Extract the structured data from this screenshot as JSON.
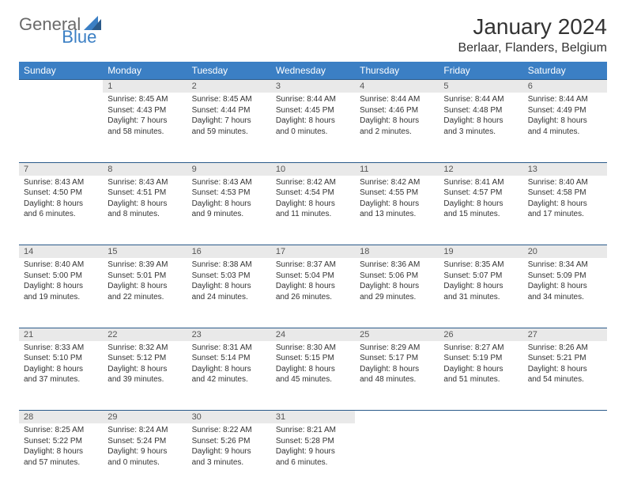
{
  "brand": {
    "part1": "General",
    "part2": "Blue"
  },
  "title": "January 2024",
  "location": "Berlaar, Flanders, Belgium",
  "colors": {
    "header_bg": "#3b7fc4",
    "header_text": "#ffffff",
    "daynum_bg": "#e9e9e9",
    "border": "#2a5a8a",
    "body_text": "#333333",
    "logo_gray": "#6a6a6a",
    "logo_blue": "#3b7fc4"
  },
  "day_headers": [
    "Sunday",
    "Monday",
    "Tuesday",
    "Wednesday",
    "Thursday",
    "Friday",
    "Saturday"
  ],
  "weeks": [
    [
      {
        "n": "",
        "empty": true
      },
      {
        "n": "1",
        "sr": "Sunrise: 8:45 AM",
        "ss": "Sunset: 4:43 PM",
        "d1": "Daylight: 7 hours",
        "d2": "and 58 minutes."
      },
      {
        "n": "2",
        "sr": "Sunrise: 8:45 AM",
        "ss": "Sunset: 4:44 PM",
        "d1": "Daylight: 7 hours",
        "d2": "and 59 minutes."
      },
      {
        "n": "3",
        "sr": "Sunrise: 8:44 AM",
        "ss": "Sunset: 4:45 PM",
        "d1": "Daylight: 8 hours",
        "d2": "and 0 minutes."
      },
      {
        "n": "4",
        "sr": "Sunrise: 8:44 AM",
        "ss": "Sunset: 4:46 PM",
        "d1": "Daylight: 8 hours",
        "d2": "and 2 minutes."
      },
      {
        "n": "5",
        "sr": "Sunrise: 8:44 AM",
        "ss": "Sunset: 4:48 PM",
        "d1": "Daylight: 8 hours",
        "d2": "and 3 minutes."
      },
      {
        "n": "6",
        "sr": "Sunrise: 8:44 AM",
        "ss": "Sunset: 4:49 PM",
        "d1": "Daylight: 8 hours",
        "d2": "and 4 minutes."
      }
    ],
    [
      {
        "n": "7",
        "sr": "Sunrise: 8:43 AM",
        "ss": "Sunset: 4:50 PM",
        "d1": "Daylight: 8 hours",
        "d2": "and 6 minutes."
      },
      {
        "n": "8",
        "sr": "Sunrise: 8:43 AM",
        "ss": "Sunset: 4:51 PM",
        "d1": "Daylight: 8 hours",
        "d2": "and 8 minutes."
      },
      {
        "n": "9",
        "sr": "Sunrise: 8:43 AM",
        "ss": "Sunset: 4:53 PM",
        "d1": "Daylight: 8 hours",
        "d2": "and 9 minutes."
      },
      {
        "n": "10",
        "sr": "Sunrise: 8:42 AM",
        "ss": "Sunset: 4:54 PM",
        "d1": "Daylight: 8 hours",
        "d2": "and 11 minutes."
      },
      {
        "n": "11",
        "sr": "Sunrise: 8:42 AM",
        "ss": "Sunset: 4:55 PM",
        "d1": "Daylight: 8 hours",
        "d2": "and 13 minutes."
      },
      {
        "n": "12",
        "sr": "Sunrise: 8:41 AM",
        "ss": "Sunset: 4:57 PM",
        "d1": "Daylight: 8 hours",
        "d2": "and 15 minutes."
      },
      {
        "n": "13",
        "sr": "Sunrise: 8:40 AM",
        "ss": "Sunset: 4:58 PM",
        "d1": "Daylight: 8 hours",
        "d2": "and 17 minutes."
      }
    ],
    [
      {
        "n": "14",
        "sr": "Sunrise: 8:40 AM",
        "ss": "Sunset: 5:00 PM",
        "d1": "Daylight: 8 hours",
        "d2": "and 19 minutes."
      },
      {
        "n": "15",
        "sr": "Sunrise: 8:39 AM",
        "ss": "Sunset: 5:01 PM",
        "d1": "Daylight: 8 hours",
        "d2": "and 22 minutes."
      },
      {
        "n": "16",
        "sr": "Sunrise: 8:38 AM",
        "ss": "Sunset: 5:03 PM",
        "d1": "Daylight: 8 hours",
        "d2": "and 24 minutes."
      },
      {
        "n": "17",
        "sr": "Sunrise: 8:37 AM",
        "ss": "Sunset: 5:04 PM",
        "d1": "Daylight: 8 hours",
        "d2": "and 26 minutes."
      },
      {
        "n": "18",
        "sr": "Sunrise: 8:36 AM",
        "ss": "Sunset: 5:06 PM",
        "d1": "Daylight: 8 hours",
        "d2": "and 29 minutes."
      },
      {
        "n": "19",
        "sr": "Sunrise: 8:35 AM",
        "ss": "Sunset: 5:07 PM",
        "d1": "Daylight: 8 hours",
        "d2": "and 31 minutes."
      },
      {
        "n": "20",
        "sr": "Sunrise: 8:34 AM",
        "ss": "Sunset: 5:09 PM",
        "d1": "Daylight: 8 hours",
        "d2": "and 34 minutes."
      }
    ],
    [
      {
        "n": "21",
        "sr": "Sunrise: 8:33 AM",
        "ss": "Sunset: 5:10 PM",
        "d1": "Daylight: 8 hours",
        "d2": "and 37 minutes."
      },
      {
        "n": "22",
        "sr": "Sunrise: 8:32 AM",
        "ss": "Sunset: 5:12 PM",
        "d1": "Daylight: 8 hours",
        "d2": "and 39 minutes."
      },
      {
        "n": "23",
        "sr": "Sunrise: 8:31 AM",
        "ss": "Sunset: 5:14 PM",
        "d1": "Daylight: 8 hours",
        "d2": "and 42 minutes."
      },
      {
        "n": "24",
        "sr": "Sunrise: 8:30 AM",
        "ss": "Sunset: 5:15 PM",
        "d1": "Daylight: 8 hours",
        "d2": "and 45 minutes."
      },
      {
        "n": "25",
        "sr": "Sunrise: 8:29 AM",
        "ss": "Sunset: 5:17 PM",
        "d1": "Daylight: 8 hours",
        "d2": "and 48 minutes."
      },
      {
        "n": "26",
        "sr": "Sunrise: 8:27 AM",
        "ss": "Sunset: 5:19 PM",
        "d1": "Daylight: 8 hours",
        "d2": "and 51 minutes."
      },
      {
        "n": "27",
        "sr": "Sunrise: 8:26 AM",
        "ss": "Sunset: 5:21 PM",
        "d1": "Daylight: 8 hours",
        "d2": "and 54 minutes."
      }
    ],
    [
      {
        "n": "28",
        "sr": "Sunrise: 8:25 AM",
        "ss": "Sunset: 5:22 PM",
        "d1": "Daylight: 8 hours",
        "d2": "and 57 minutes."
      },
      {
        "n": "29",
        "sr": "Sunrise: 8:24 AM",
        "ss": "Sunset: 5:24 PM",
        "d1": "Daylight: 9 hours",
        "d2": "and 0 minutes."
      },
      {
        "n": "30",
        "sr": "Sunrise: 8:22 AM",
        "ss": "Sunset: 5:26 PM",
        "d1": "Daylight: 9 hours",
        "d2": "and 3 minutes."
      },
      {
        "n": "31",
        "sr": "Sunrise: 8:21 AM",
        "ss": "Sunset: 5:28 PM",
        "d1": "Daylight: 9 hours",
        "d2": "and 6 minutes."
      },
      {
        "n": "",
        "empty": true
      },
      {
        "n": "",
        "empty": true
      },
      {
        "n": "",
        "empty": true
      }
    ]
  ]
}
